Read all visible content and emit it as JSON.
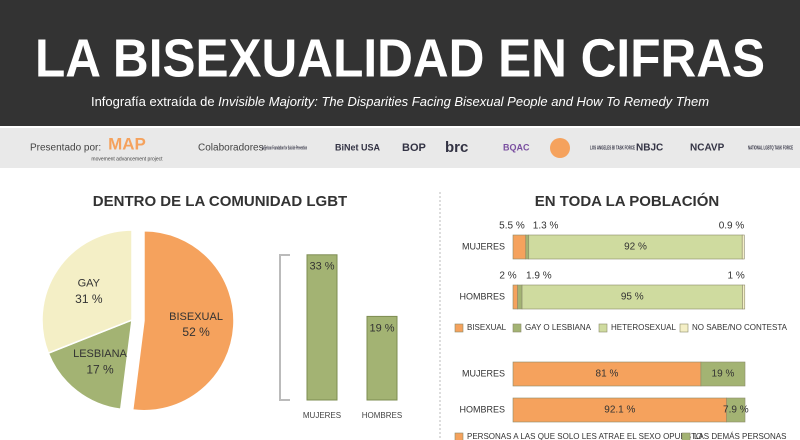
{
  "header": {
    "title": "LA BISEXUALIDAD EN CIFRAS",
    "subtitle_prefix": "Infografía extraída de ",
    "subtitle_source": "Invisible Majority: The Disparities Facing Bisexual People and How To Remedy Them"
  },
  "sponsors": {
    "presented_label": "Presentado por:",
    "presenter": "MAP",
    "presenter_tagline": "movement advancement project",
    "collaborators_label": "Colaboradores:",
    "collaborators": [
      "American Foundation for Suicide Prevention",
      "BiNet USA",
      "BOP",
      "brc",
      "BQAC",
      "LOS ANGELES BI TASK FORCE",
      "NBJC",
      "NCAVP",
      "NATIONAL LGBTQ TASK FORCE"
    ]
  },
  "chart_data": [
    {
      "type": "pie",
      "title": "DENTRO DE LA COMUNIDAD LGBT",
      "categories": [
        "BISEXUAL",
        "LESBIANA",
        "GAY"
      ],
      "values": [
        52,
        17,
        31
      ],
      "value_labels": [
        "52 %",
        "17 %",
        "31 %"
      ],
      "colors": [
        "#f5a25d",
        "#a3b373",
        "#f4efc6"
      ]
    },
    {
      "type": "bar",
      "categories": [
        "MUJERES",
        "HOMBRES"
      ],
      "values": [
        33,
        19
      ],
      "value_labels": [
        "33 %",
        "19 %"
      ],
      "color": "#a3b373"
    },
    {
      "type": "stacked_bar",
      "title": "EN TODA LA POBLACIÓN",
      "categories": [
        "MUJERES",
        "HOMBRES"
      ],
      "series": [
        {
          "name": "BISEXUAL",
          "color": "#f5a25d",
          "values": [
            5.5,
            2
          ],
          "value_labels": [
            "5.5 %",
            "2 %"
          ]
        },
        {
          "name": "GAY O LESBIANA",
          "color": "#a3b373",
          "values": [
            1.3,
            1.9
          ],
          "value_labels": [
            "1.3 %",
            "1.9 %"
          ]
        },
        {
          "name": "HETEROSEXUAL",
          "color": "#cfdb9f",
          "values": [
            92,
            95
          ],
          "value_labels": [
            "92 %",
            "95 %"
          ]
        },
        {
          "name": "NO SABE/NO CONTESTA",
          "color": "#f4efc6",
          "values": [
            0.9,
            1
          ],
          "value_labels": [
            "0.9 %",
            "1 %"
          ]
        }
      ]
    },
    {
      "type": "stacked_bar",
      "categories": [
        "MUJERES",
        "HOMBRES"
      ],
      "series": [
        {
          "name": "PERSONAS A LAS QUE SOLO LES ATRAE EL SEXO OPUESTO",
          "color": "#f5a25d",
          "values": [
            81,
            92.1
          ],
          "value_labels": [
            "81 %",
            "92.1 %"
          ]
        },
        {
          "name": "LAS DEMÁS PERSONAS",
          "color": "#a3b373",
          "values": [
            19,
            7.9
          ],
          "value_labels": [
            "19 %",
            "7.9 %"
          ]
        }
      ]
    }
  ]
}
